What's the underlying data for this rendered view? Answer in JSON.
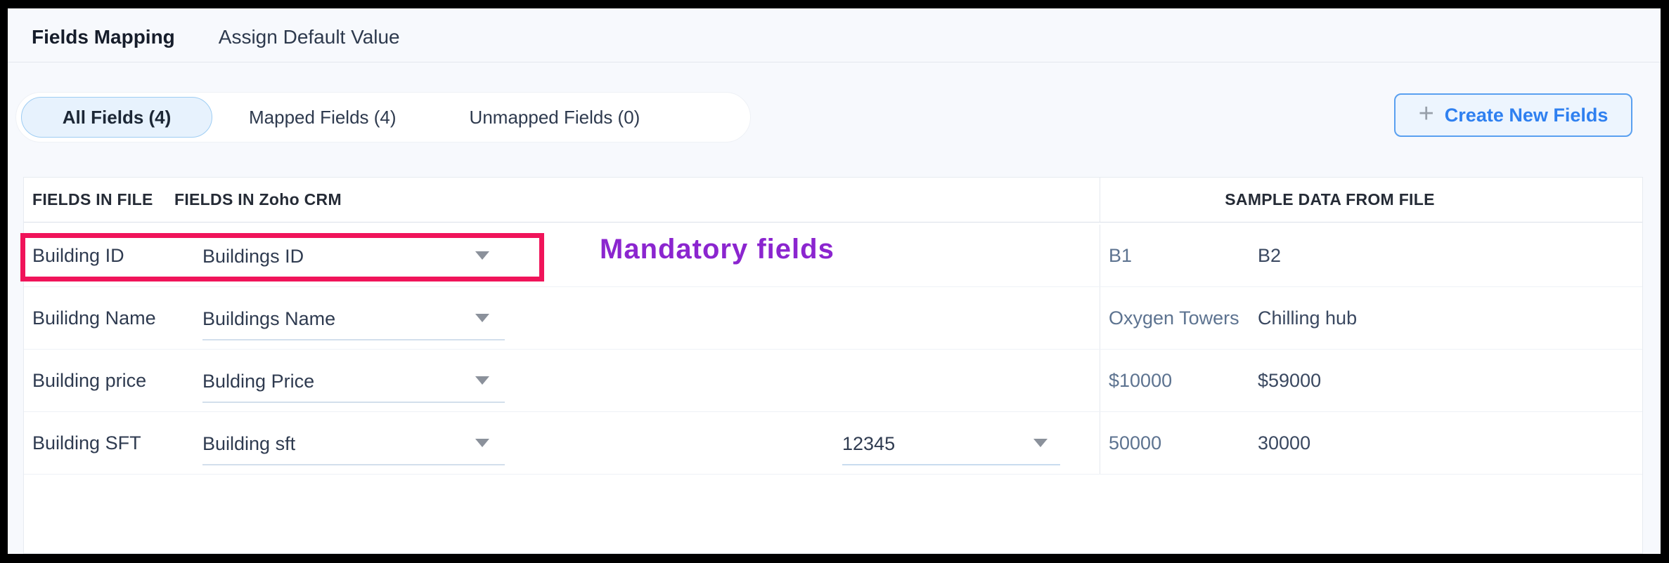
{
  "header": {
    "tabs": [
      {
        "label": "Fields Mapping",
        "active": true
      },
      {
        "label": "Assign Default Value",
        "active": false
      }
    ]
  },
  "filters": {
    "tabs": [
      {
        "label": "All Fields (4)",
        "active": true
      },
      {
        "label": "Mapped Fields (4)",
        "active": false
      },
      {
        "label": "Unmapped Fields (0)",
        "active": false
      }
    ]
  },
  "actions": {
    "create_new_fields": {
      "icon": "plus-icon",
      "plus": "+",
      "label": "Create New Fields"
    }
  },
  "table": {
    "headers": {
      "file": "FIELDS IN FILE",
      "crm": "FIELDS IN Zoho CRM",
      "sample": "SAMPLE DATA FROM FILE"
    },
    "rows": [
      {
        "file_field": "Building ID",
        "crm_field": "Buildings ID",
        "sample_1": "B1",
        "sample_2": "B2"
      },
      {
        "file_field": "Builidng Name",
        "crm_field": "Buildings Name",
        "sample_1": "Oxygen Towers",
        "sample_2": "Chilling hub"
      },
      {
        "file_field": "Building price",
        "crm_field": "Bulding Price",
        "sample_1": "$10000",
        "sample_2": "$59000"
      },
      {
        "file_field": "Building SFT",
        "crm_field": "Building sft",
        "format_value": "12345",
        "sample_1": "50000",
        "sample_2": "30000"
      }
    ]
  },
  "annotation": {
    "label": "Mandatory fields",
    "text_color": "#8b25cf",
    "highlight_color": "#f0145a"
  }
}
